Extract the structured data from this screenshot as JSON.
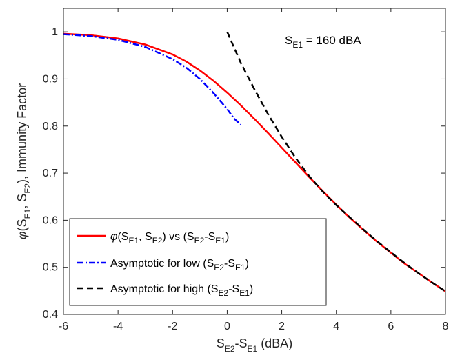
{
  "chart_data": {
    "type": "line",
    "xlabel": {
      "main": "S",
      "sub1": "E2",
      "mid": "-S",
      "sub2": "E1",
      "tail": " (dBA)"
    },
    "ylabel": {
      "phi": "φ",
      "open": "(S",
      "sub1": "E1",
      "comma": ", S",
      "sub2": "E2",
      "tail": "), Immunity Factor"
    },
    "xlim": [
      -6,
      8
    ],
    "ylim": [
      0.4,
      1.05
    ],
    "xticks": [
      -6,
      -4,
      -2,
      0,
      2,
      4,
      6,
      8
    ],
    "yticks": [
      0.4,
      0.5,
      0.6,
      0.7,
      0.8,
      0.9,
      1
    ],
    "xtick_labels": [
      "-6",
      "-4",
      "-2",
      "0",
      "2",
      "4",
      "6",
      "8"
    ],
    "ytick_labels": [
      "0.4",
      "0.5",
      "0.6",
      "0.7",
      "0.8",
      "0.9",
      "1"
    ],
    "annotation": {
      "main": "S",
      "sub": "E1",
      "tail": " = 160 dBA"
    },
    "legend_position": "bottom-left",
    "grid": false,
    "series": [
      {
        "key": "exact",
        "legend": {
          "phi": "φ",
          "p1": "(S",
          "s1": "E1",
          "p2": ", S",
          "s2": "E2",
          "p3": ") vs (S",
          "s3": "E2",
          "p4": "-S",
          "s4": "E1",
          "p5": ")"
        },
        "color": "#ff0000",
        "style": "solid",
        "x": [
          -6,
          -5,
          -4,
          -3,
          -2,
          -1.5,
          -1,
          -0.5,
          0,
          0.5,
          1,
          1.5,
          2,
          2.5,
          3,
          3.5,
          4,
          4.5,
          5,
          5.5,
          6,
          6.5,
          7,
          7.5,
          8
        ],
        "y": [
          0.996,
          0.993,
          0.986,
          0.973,
          0.952,
          0.937,
          0.918,
          0.896,
          0.871,
          0.844,
          0.815,
          0.785,
          0.754,
          0.723,
          0.692,
          0.662,
          0.633,
          0.605,
          0.579,
          0.554,
          0.531,
          0.508,
          0.488,
          0.468,
          0.449
        ]
      },
      {
        "key": "low",
        "legend": {
          "p1": "Asymptotic for low (S",
          "s1": "E2",
          "p2": "-S",
          "s2": "E1",
          "p3": ")"
        },
        "color": "#0000ff",
        "style": "dashdot",
        "x": [
          -6,
          -5,
          -4,
          -3,
          -2,
          -1.5,
          -1,
          -0.5,
          0,
          0.25,
          0.5
        ],
        "y": [
          0.995,
          0.991,
          0.983,
          0.968,
          0.942,
          0.924,
          0.9,
          0.87,
          0.836,
          0.816,
          0.803
        ]
      },
      {
        "key": "high",
        "legend": {
          "p1": "Asymptotic for high (S",
          "s1": "E2",
          "p2": "-S",
          "s2": "E1",
          "p3": ")"
        },
        "color": "#000000",
        "style": "dashed",
        "x": [
          0,
          0.5,
          1,
          1.5,
          2,
          2.5,
          3,
          3.5,
          4,
          4.5,
          5,
          5.5,
          6,
          6.5,
          7,
          7.5,
          8
        ],
        "y": [
          1.0,
          0.934,
          0.878,
          0.825,
          0.777,
          0.733,
          0.694,
          0.661,
          0.632,
          0.606,
          0.58,
          0.555,
          0.532,
          0.509,
          0.488,
          0.468,
          0.449
        ]
      }
    ]
  }
}
